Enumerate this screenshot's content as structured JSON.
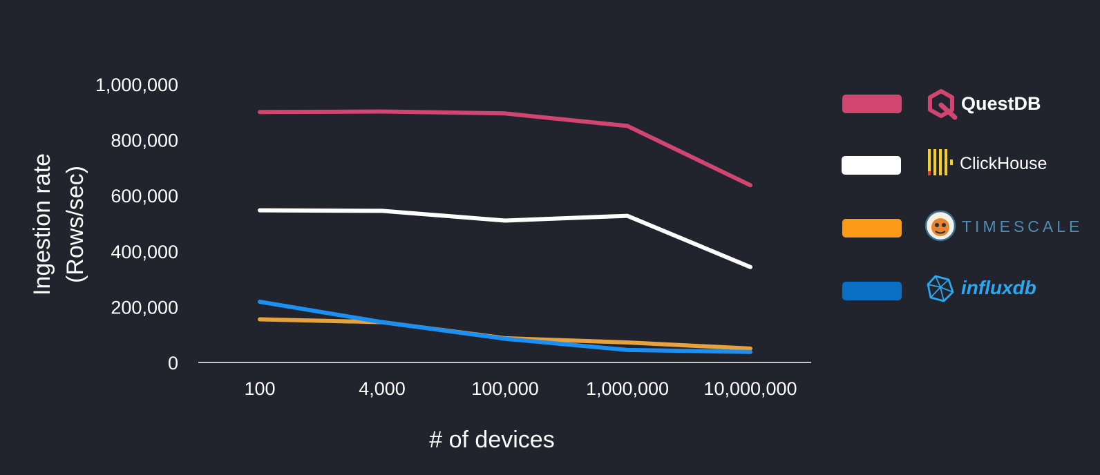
{
  "chart_data": {
    "type": "line",
    "xlabel": "# of devices",
    "ylabel": "Ingestion rate",
    "ylabel_sub": "(Rows/sec)",
    "categories": [
      "100",
      "4,000",
      "100,000",
      "1,000,000",
      "10,000,000"
    ],
    "ylim": [
      0,
      1000000
    ],
    "y_ticks": [
      {
        "value": 0,
        "label": "0"
      },
      {
        "value": 200000,
        "label": "200,000"
      },
      {
        "value": 400000,
        "label": "400,000"
      },
      {
        "value": 600000,
        "label": "600,000"
      },
      {
        "value": 800000,
        "label": "800,000"
      },
      {
        "value": 1000000,
        "label": "1,000,000"
      }
    ],
    "grid": false,
    "legend_position": "right",
    "series": [
      {
        "name": "QuestDB",
        "color": "#d14671",
        "legend_color": "#d14671",
        "icon": "questdb-logo-icon",
        "values": [
          900000,
          902000,
          895000,
          850000,
          637000
        ]
      },
      {
        "name": "ClickHouse",
        "color": "#ffffff",
        "legend_color": "#ffffff",
        "icon": "clickhouse-logo-icon",
        "values": [
          547000,
          545000,
          510000,
          527000,
          343000
        ]
      },
      {
        "name": "TIMESCALE",
        "color": "#e6a23c",
        "legend_color": "#fb9a17",
        "icon": "timescale-logo-icon",
        "values": [
          155000,
          145000,
          87000,
          72000,
          50000
        ]
      },
      {
        "name": "influxdb",
        "color": "#1b8ff2",
        "legend_color": "#0a6fc2",
        "icon": "influxdb-logo-icon",
        "values": [
          218000,
          145000,
          85000,
          45000,
          38000
        ]
      }
    ]
  }
}
